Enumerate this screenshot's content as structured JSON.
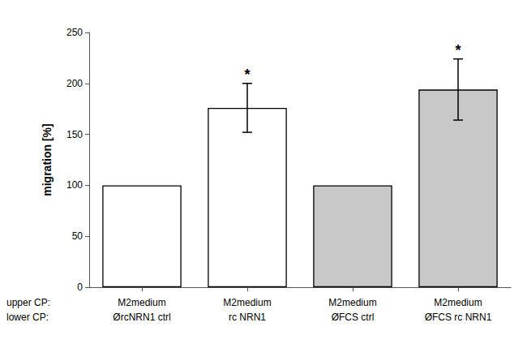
{
  "chart_data": {
    "type": "bar",
    "categories": [
      "M2medium\nØrcNRN1 ctrl",
      "M2medium\nrc NRN1",
      "M2medium\nØFCS ctrl",
      "M2medium\nØFCS rc NRN1"
    ],
    "values": [
      100,
      176,
      100,
      194
    ],
    "errors": [
      0,
      24,
      0,
      30
    ],
    "significance": [
      null,
      "*",
      null,
      "*"
    ],
    "colors": [
      "#ffffff",
      "#ffffff",
      "#c8c8c8",
      "#c8c8c8"
    ],
    "ylabel": "migration [%]",
    "ylim": [
      0,
      250
    ],
    "yticks": [
      0,
      50,
      100,
      150,
      200,
      250
    ],
    "grid": false,
    "annotations": [
      "upper CP:",
      "lower CP:"
    ]
  }
}
